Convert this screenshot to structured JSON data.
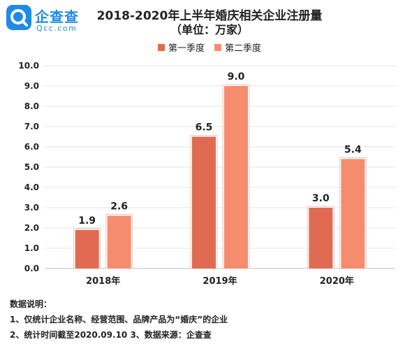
{
  "logo": {
    "cn": "企查查",
    "en": "Qcc.com",
    "color": "#1e8ae6"
  },
  "title": "2018-2020年上半年婚庆相关企业注册量",
  "subtitle": "（单位：万家）",
  "chart_data": {
    "type": "bar",
    "title": "2018-2020年上半年婚庆相关企业注册量",
    "subtitle": "（单位：万家）",
    "categories": [
      "2018年",
      "2019年",
      "2020年"
    ],
    "series": [
      {
        "name": "第一季度",
        "values": [
          1.9,
          6.5,
          3.0
        ],
        "labels": [
          "1.9",
          "6.5",
          "3.0"
        ],
        "color": "#e06b52"
      },
      {
        "name": "第二季度",
        "values": [
          2.6,
          9.0,
          5.4
        ],
        "labels": [
          "2.6",
          "9.0",
          "5.4"
        ],
        "color": "#f68c6e"
      }
    ],
    "ylim": [
      0,
      10
    ],
    "yticks": [
      "0.0",
      "1.0",
      "2.0",
      "3.0",
      "4.0",
      "5.0",
      "6.0",
      "7.0",
      "8.0",
      "9.0",
      "10.0"
    ],
    "grid": true,
    "legend": "top-center"
  },
  "notes": {
    "heading": "数据说明：",
    "line1": "1、仅统计企业名称、经营范围、品牌产品为“婚庆”的企业",
    "line2": "2、统计时间截至2020.09.10   3、数据来源：企查查"
  }
}
